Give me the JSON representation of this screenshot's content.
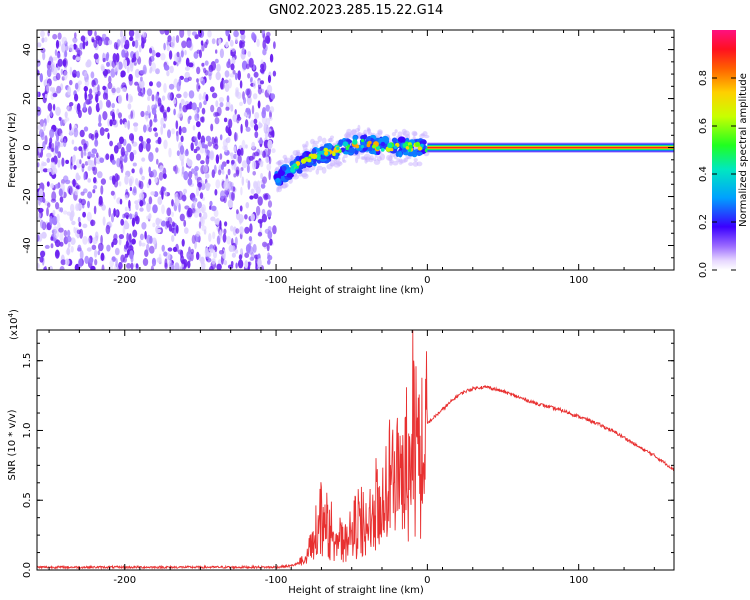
{
  "title": "GN02.2023.285.15.22.G14",
  "colors": {
    "snr_line": "#e83030",
    "scatter_purple": "#6a1ff0",
    "axes": "#000000"
  },
  "chart_data": [
    {
      "type": "heatmap",
      "xlabel": "Height of straight line (km)",
      "ylabel": "Frequency (Hz)",
      "xlim": [
        -258,
        163
      ],
      "ylim": [
        -50,
        48
      ],
      "x_ticks": [
        -200,
        -100,
        0,
        100
      ],
      "x_tick_labels": [
        "-200",
        "-100",
        "0",
        "100"
      ],
      "y_ticks": [
        -40,
        -20,
        0,
        20,
        40
      ],
      "y_tick_labels": [
        "-40",
        "-20",
        "0",
        "20",
        "40"
      ],
      "grid": false,
      "regions": [
        {
          "name": "noise",
          "x_range": [
            -258,
            -101
          ],
          "y_range": [
            -50,
            48
          ],
          "amplitude": [
            0.0,
            0.3
          ]
        },
        {
          "name": "transition",
          "x_range": [
            -100,
            0
          ],
          "amplitude": [
            0.2,
            0.8
          ]
        },
        {
          "name": "steady",
          "x_range": [
            0,
            163
          ],
          "y": 0,
          "amplitude": 1.0
        }
      ],
      "track": {
        "x": [
          -100,
          -95,
          -90,
          -85,
          -80,
          -75,
          -70,
          -65,
          -60,
          -55,
          -50,
          -45,
          -40,
          -35,
          -30,
          -25,
          -20,
          -15,
          -10,
          -5,
          0
        ],
        "y": [
          -13,
          -11,
          -9,
          -7,
          -5,
          -4,
          -3,
          -2,
          -1,
          0,
          1,
          1.5,
          1.5,
          1,
          0.5,
          0.5,
          0.3,
          0.2,
          0.1,
          0,
          0
        ]
      },
      "colorbar": {
        "label": "Normalized spectral amplitude",
        "range": [
          0,
          1
        ],
        "ticks": [
          0.0,
          0.2,
          0.4,
          0.6,
          0.8
        ],
        "tick_labels": [
          "0.0",
          "0.2",
          "0.4",
          "0.6",
          "0.8"
        ]
      }
    },
    {
      "type": "line",
      "xlabel": "Height of straight line (km)",
      "ylabel": "SNR (10 * v/v)",
      "scale_label": "(x10",
      "scale_exp": "4",
      "scale_close": ")",
      "xlim": [
        -258,
        163
      ],
      "ylim": [
        0,
        1.72
      ],
      "x_ticks": [
        -200,
        -100,
        0,
        100
      ],
      "x_tick_labels": [
        "-200",
        "-100",
        "0",
        "100"
      ],
      "y_ticks": [
        0.0,
        0.5,
        1.0,
        1.5
      ],
      "y_tick_labels": [
        "0.0",
        "0.5",
        "1.0",
        "1.5"
      ],
      "grid": false,
      "series": [
        {
          "x": [
            -258,
            -240,
            -220,
            -200,
            -180,
            -160,
            -140,
            -120,
            -100,
            -90,
            -85,
            -80,
            -75,
            -70,
            -65,
            -60,
            -55,
            -50,
            -45,
            -40,
            -35,
            -30,
            -25,
            -20,
            -15,
            -10,
            -5,
            0,
            5,
            10,
            15,
            20,
            25,
            30,
            35,
            40,
            50,
            60,
            70,
            80,
            90,
            100,
            110,
            120,
            130,
            140,
            150,
            163
          ],
          "values": [
            0.02,
            0.02,
            0.02,
            0.02,
            0.02,
            0.02,
            0.02,
            0.02,
            0.02,
            0.03,
            0.05,
            0.1,
            0.3,
            0.45,
            0.35,
            0.3,
            0.2,
            0.3,
            0.4,
            0.35,
            0.5,
            0.6,
            0.7,
            0.75,
            0.8,
            1.0,
            1.0,
            1.05,
            1.1,
            1.15,
            1.2,
            1.25,
            1.28,
            1.3,
            1.31,
            1.31,
            1.28,
            1.24,
            1.2,
            1.17,
            1.14,
            1.1,
            1.06,
            1.01,
            0.95,
            0.88,
            0.82,
            0.72
          ]
        }
      ]
    }
  ]
}
